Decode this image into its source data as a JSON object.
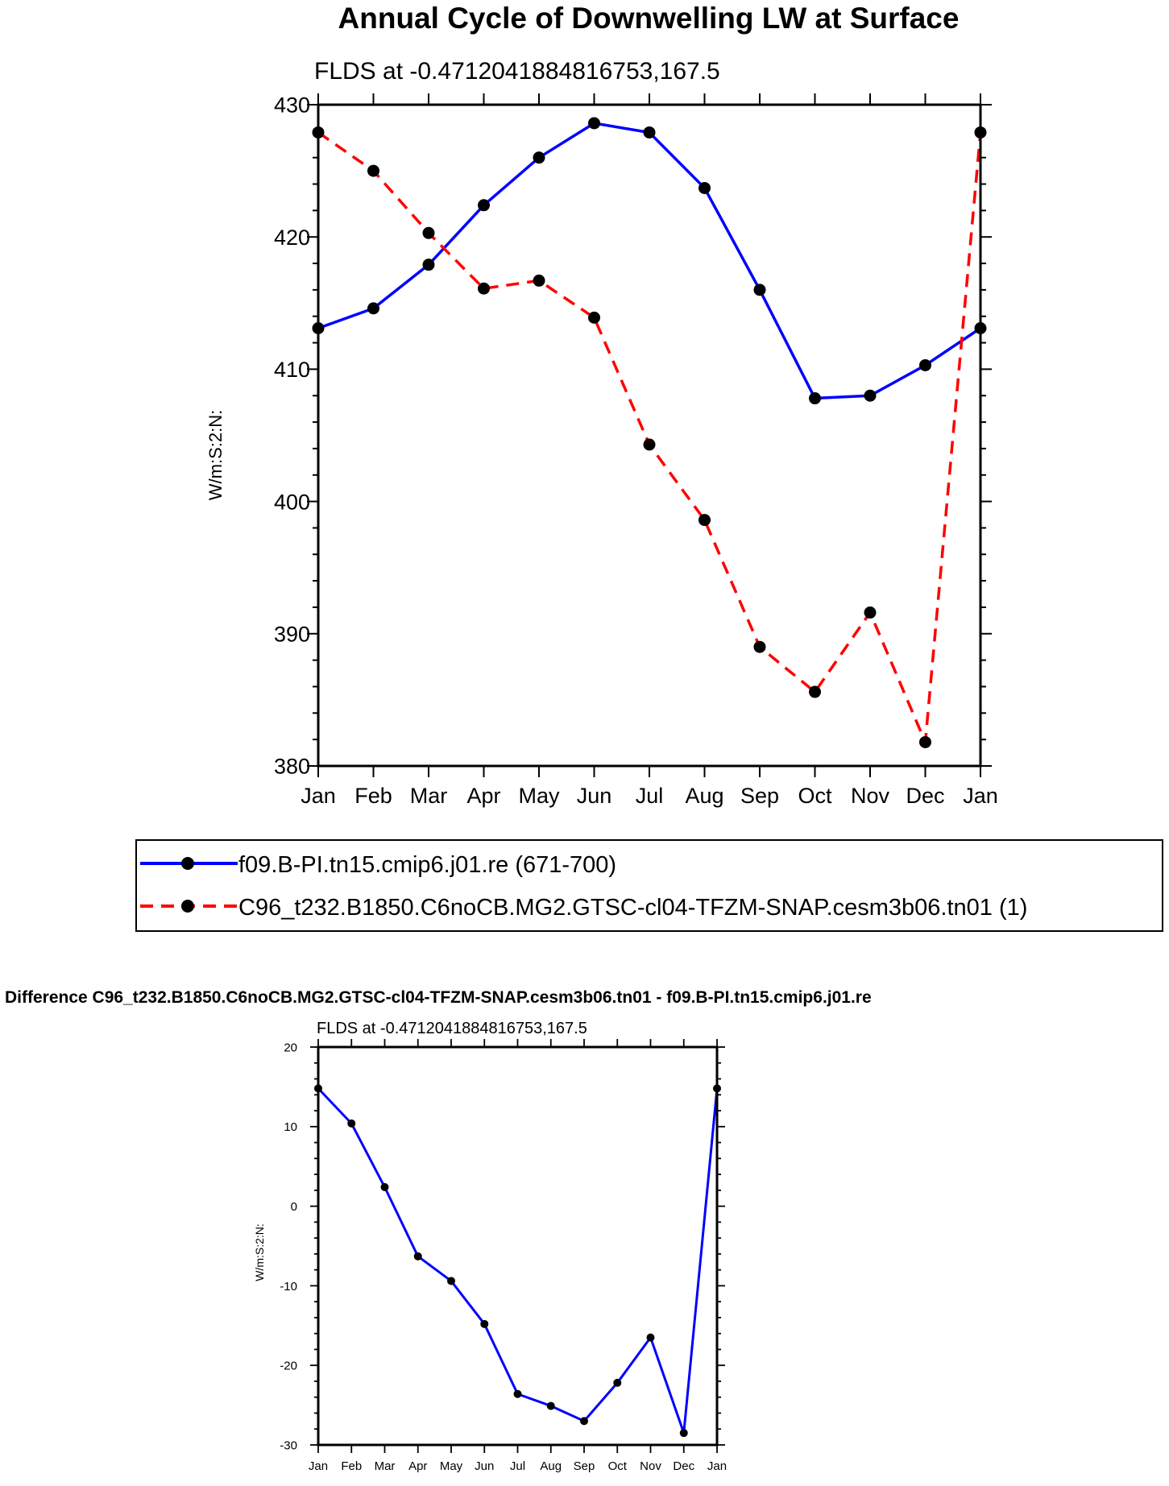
{
  "chart_data": [
    {
      "type": "line",
      "title": "Annual Cycle of Downwelling LW at Surface",
      "subtitle": "FLDS at -0.4712041884816753,167.5",
      "ylabel": "W/m:S:2:N:",
      "xlabel": "",
      "ylim": [
        380,
        430
      ],
      "yticks": [
        380,
        390,
        400,
        410,
        420,
        430
      ],
      "categories": [
        "Jan",
        "Feb",
        "Mar",
        "Apr",
        "May",
        "Jun",
        "Jul",
        "Aug",
        "Sep",
        "Oct",
        "Nov",
        "Dec",
        "Jan"
      ],
      "series": [
        {
          "name": "f09.B-PI.tn15.cmip6.j01.re (671-700)",
          "color": "#0000ff",
          "dashed": false,
          "values": [
            413.1,
            414.6,
            417.9,
            422.4,
            426.0,
            428.6,
            427.9,
            423.7,
            416.0,
            407.8,
            408.0,
            410.3,
            413.1
          ]
        },
        {
          "name": "C96_t232.B1850.C6noCB.MG2.GTSC-cl04-TFZM-SNAP.cesm3b06.tn01 (1)",
          "color": "#ff0000",
          "dashed": true,
          "values": [
            427.9,
            425.0,
            420.3,
            416.1,
            416.7,
            413.9,
            404.3,
            398.6,
            389.0,
            385.6,
            391.6,
            381.8,
            427.9
          ]
        }
      ],
      "legend": "bottom"
    },
    {
      "type": "line",
      "title": "Difference C96_t232.B1850.C6noCB.MG2.GTSC-cl04-TFZM-SNAP.cesm3b06.tn01 - f09.B-PI.tn15.cmip6.j01.re",
      "subtitle": "FLDS at -0.4712041884816753,167.5",
      "ylabel": "W/m:S:2:N:",
      "xlabel": "",
      "ylim": [
        -30,
        20
      ],
      "yticks": [
        -30,
        -20,
        -10,
        0,
        10,
        20
      ],
      "categories": [
        "Jan",
        "Feb",
        "Mar",
        "Apr",
        "May",
        "Jun",
        "Jul",
        "Aug",
        "Sep",
        "Oct",
        "Nov",
        "Dec",
        "Jan"
      ],
      "series": [
        {
          "name": "Difference",
          "color": "#0000ff",
          "dashed": false,
          "values": [
            14.8,
            10.4,
            2.4,
            -6.3,
            -9.4,
            -14.8,
            -23.6,
            -25.1,
            -27.0,
            -22.2,
            -16.5,
            -28.5,
            14.8
          ]
        }
      ]
    }
  ]
}
